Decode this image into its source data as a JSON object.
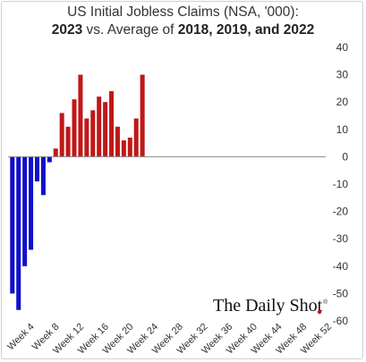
{
  "title": {
    "line1": "US Initial Jobless Claims (NSA, '000):",
    "line2_bold_a": "2023",
    "line2_mid": " vs. Average of ",
    "line2_bold_b": "2018, 2019, and 2022"
  },
  "brand": {
    "text": "The Daily Shot",
    "mark": "®"
  },
  "colors": {
    "negative": "#1010c8",
    "positive": "#c01818",
    "axis": "#8a8a8a",
    "brand_dot": "#c01818"
  },
  "chart_data": {
    "type": "bar",
    "title": "US Initial Jobless Claims (NSA, '000): 2023 vs. Average of 2018, 2019, and 2022",
    "xlabel": "",
    "ylabel": "",
    "ylim": [
      -60,
      40
    ],
    "yticks": [
      40,
      30,
      20,
      10,
      0,
      -10,
      -20,
      -30,
      -40,
      -50,
      -60
    ],
    "y_axis_position": "right",
    "xtick_labels": [
      "Week 4",
      "Week 8",
      "Week 12",
      "Week 16",
      "Week 20",
      "Week 24",
      "Week 28",
      "Week 32",
      "Week 36",
      "Week 40",
      "Week 44",
      "Week 48",
      "Week 52"
    ],
    "weeks": [
      1,
      2,
      3,
      4,
      5,
      6,
      7,
      8,
      9,
      10,
      11,
      12,
      13,
      14,
      15,
      16,
      17,
      18,
      19,
      20,
      21,
      22,
      23
    ],
    "values": [
      -50,
      -56,
      -40,
      -34,
      -9,
      -14,
      -2,
      3,
      16,
      11,
      21,
      30,
      14,
      17,
      22,
      20,
      24,
      11,
      6,
      7,
      14,
      30,
      0
    ],
    "grid": false,
    "legend": "none"
  }
}
